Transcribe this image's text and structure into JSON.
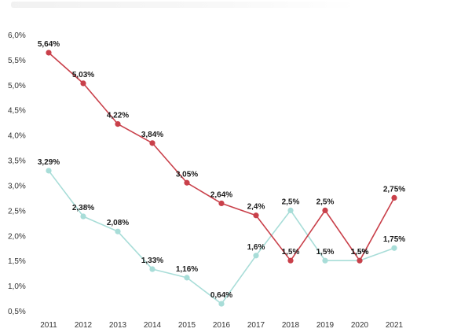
{
  "chart_data": {
    "type": "line",
    "title": "",
    "xlabel": "",
    "ylabel": "",
    "x": [
      "2011",
      "2012",
      "2013",
      "2014",
      "2015",
      "2016",
      "2017",
      "2018",
      "2019",
      "2020",
      "2021"
    ],
    "ylim": [
      0.5,
      6.0
    ],
    "yticks": [
      "6,0%",
      "5,5%",
      "5,0%",
      "4,5%",
      "4,0%",
      "3,5%",
      "3,0%",
      "2,5%",
      "2,0%",
      "1,5%",
      "1,0%",
      "0,5%"
    ],
    "ytick_values": [
      6.0,
      5.5,
      5.0,
      4.5,
      4.0,
      3.5,
      3.0,
      2.5,
      2.0,
      1.5,
      1.0,
      0.5
    ],
    "grid": false,
    "series": [
      {
        "color": "#c9404a",
        "values": [
          5.64,
          5.03,
          4.22,
          3.84,
          3.05,
          2.64,
          2.4,
          1.5,
          2.5,
          1.5,
          2.75
        ],
        "labels": [
          "5,64%",
          "5,03%",
          "4,22%",
          "3,84%",
          "3,05%",
          "2,64%",
          "2,4%",
          "1,5%",
          "2,5%",
          "1,5%",
          "2,75%"
        ]
      },
      {
        "color": "#a8ddd8",
        "values": [
          3.29,
          2.38,
          2.08,
          1.33,
          1.16,
          0.64,
          1.6,
          2.5,
          1.5,
          1.5,
          1.75
        ],
        "labels": [
          "3,29%",
          "2,38%",
          "2,08%",
          "1,33%",
          "1,16%",
          "0,64%",
          "1,6%",
          "2,5%",
          "1,5%",
          "1,5%",
          "1,75%"
        ]
      }
    ]
  }
}
